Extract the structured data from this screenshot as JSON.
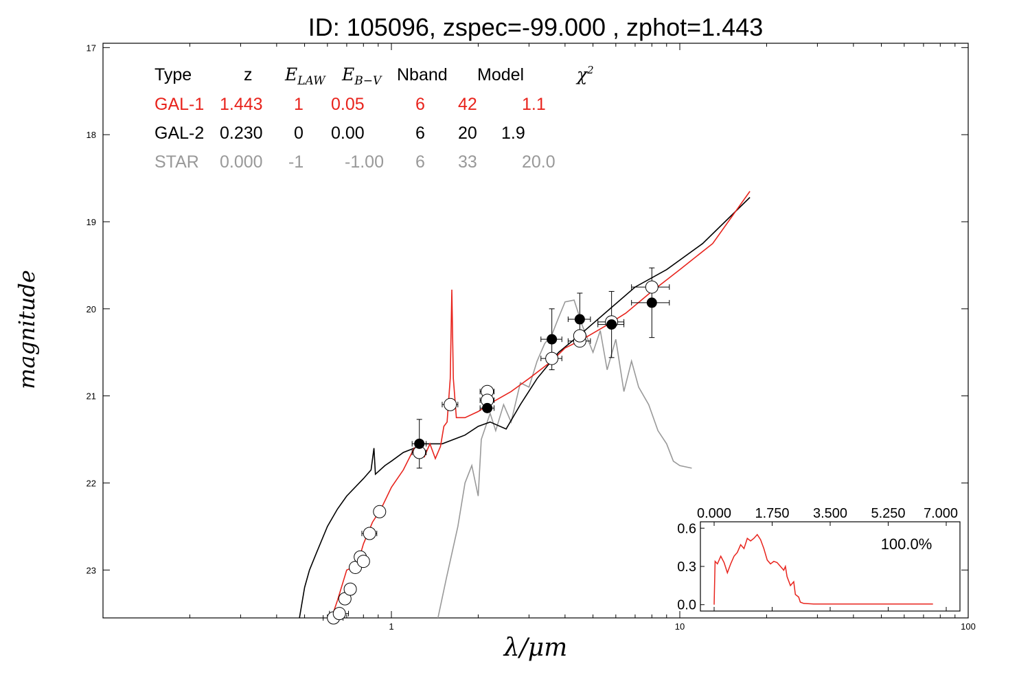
{
  "title": "ID:  105096, zspec=-99.000 , zphot=1.443",
  "colors": {
    "gal1": "#e8231c",
    "gal2": "#000000",
    "star": "#999999",
    "axes": "#000000"
  },
  "table": {
    "headers": [
      "Type",
      "z",
      "E_LAW",
      "E_B-V",
      "Nband",
      "Model",
      "χ²"
    ],
    "rows": [
      {
        "type": "GAL-1",
        "z": "1.443",
        "elaw": "1",
        "ebv": "0.05",
        "nband": "6",
        "model": "42",
        "chi2": "1.1",
        "color": "#e8231c"
      },
      {
        "type": "GAL-2",
        "z": "0.230",
        "elaw": "0",
        "ebv": "0.00",
        "nband": "6",
        "model": "20",
        "chi2": "1.9",
        "color": "#000000"
      },
      {
        "type": "STAR",
        "z": "0.000",
        "elaw": "-1",
        "ebv": "-1.00",
        "nband": "6",
        "model": "33",
        "chi2": "20.0",
        "color": "#999999"
      }
    ]
  },
  "chart_data": [
    {
      "type": "line",
      "xlabel": "λ/μm",
      "ylabel": "magnitude",
      "xscale": "log",
      "xlim": [
        0.1,
        100
      ],
      "ylim": [
        23.55,
        16.95
      ],
      "y_inverted": true,
      "xticks": [
        1,
        10,
        100
      ],
      "xtick_labels": [
        "1",
        "10",
        "100"
      ],
      "yticks": [
        17,
        18,
        19,
        20,
        21,
        22,
        23
      ],
      "ytick_labels": [
        "17",
        "18",
        "19",
        "20",
        "21",
        "22",
        "23"
      ],
      "grid": false,
      "series": [
        {
          "key": "gal1",
          "color": "#e8231c",
          "kind": "line",
          "points": [
            [
              0.62,
              23.55
            ],
            [
              0.65,
              23.35
            ],
            [
              0.7,
              23.0
            ],
            [
              0.76,
              22.95
            ],
            [
              0.8,
              22.7
            ],
            [
              0.86,
              22.45
            ],
            [
              0.92,
              22.3
            ],
            [
              1.0,
              22.05
            ],
            [
              1.1,
              21.85
            ],
            [
              1.2,
              21.6
            ],
            [
              1.3,
              21.7
            ],
            [
              1.36,
              21.55
            ],
            [
              1.42,
              21.72
            ],
            [
              1.48,
              21.58
            ],
            [
              1.52,
              21.35
            ],
            [
              1.56,
              21.3
            ],
            [
              1.6,
              20.8
            ],
            [
              1.62,
              19.78
            ],
            [
              1.64,
              20.8
            ],
            [
              1.68,
              21.25
            ],
            [
              1.8,
              21.25
            ],
            [
              2.0,
              21.18
            ],
            [
              2.3,
              21.05
            ],
            [
              2.6,
              20.95
            ],
            [
              3.0,
              20.8
            ],
            [
              3.6,
              20.6
            ],
            [
              4.0,
              20.45
            ],
            [
              4.6,
              20.35
            ],
            [
              5.5,
              20.2
            ],
            [
              6.5,
              20.05
            ],
            [
              8.0,
              19.8
            ],
            [
              10.0,
              19.55
            ],
            [
              13.0,
              19.25
            ],
            [
              17.5,
              18.65
            ]
          ]
        },
        {
          "key": "gal2",
          "color": "#000000",
          "kind": "line",
          "points": [
            [
              0.48,
              23.55
            ],
            [
              0.5,
              23.2
            ],
            [
              0.52,
              23.0
            ],
            [
              0.55,
              22.8
            ],
            [
              0.6,
              22.5
            ],
            [
              0.65,
              22.3
            ],
            [
              0.7,
              22.15
            ],
            [
              0.8,
              21.95
            ],
            [
              0.85,
              21.85
            ],
            [
              0.87,
              21.6
            ],
            [
              0.88,
              21.9
            ],
            [
              0.95,
              21.8
            ],
            [
              1.0,
              21.75
            ],
            [
              1.1,
              21.65
            ],
            [
              1.2,
              21.6
            ],
            [
              1.3,
              21.55
            ],
            [
              1.5,
              21.55
            ],
            [
              1.8,
              21.45
            ],
            [
              2.0,
              21.35
            ],
            [
              2.2,
              21.3
            ],
            [
              2.5,
              21.38
            ],
            [
              2.8,
              21.1
            ],
            [
              3.2,
              20.8
            ],
            [
              3.8,
              20.5
            ],
            [
              4.5,
              20.3
            ],
            [
              5.5,
              20.05
            ],
            [
              7.0,
              19.75
            ],
            [
              9.0,
              19.55
            ],
            [
              12.0,
              19.25
            ],
            [
              17.5,
              18.72
            ]
          ]
        },
        {
          "key": "star",
          "color": "#999999",
          "kind": "line",
          "points": [
            [
              1.45,
              23.55
            ],
            [
              1.55,
              23.1
            ],
            [
              1.7,
              22.5
            ],
            [
              1.8,
              22.0
            ],
            [
              1.9,
              21.8
            ],
            [
              2.0,
              22.15
            ],
            [
              2.05,
              21.5
            ],
            [
              2.2,
              21.2
            ],
            [
              2.3,
              21.4
            ],
            [
              2.45,
              21.1
            ],
            [
              2.6,
              21.3
            ],
            [
              2.8,
              20.85
            ],
            [
              3.0,
              20.9
            ],
            [
              3.2,
              20.6
            ],
            [
              3.4,
              20.4
            ],
            [
              3.6,
              20.3
            ],
            [
              3.8,
              20.1
            ],
            [
              4.0,
              19.92
            ],
            [
              4.3,
              19.9
            ],
            [
              4.6,
              20.2
            ],
            [
              5.0,
              20.5
            ],
            [
              5.3,
              20.25
            ],
            [
              5.6,
              20.7
            ],
            [
              6.0,
              20.35
            ],
            [
              6.4,
              20.95
            ],
            [
              6.8,
              20.6
            ],
            [
              7.2,
              20.9
            ],
            [
              7.8,
              21.1
            ],
            [
              8.4,
              21.4
            ],
            [
              9.0,
              21.55
            ],
            [
              9.5,
              21.75
            ],
            [
              10.0,
              21.8
            ],
            [
              11.0,
              21.83
            ]
          ]
        }
      ],
      "data_points": [
        {
          "x": 1.25,
          "y": 21.55,
          "xerr": 0.07,
          "yerr": 0.28,
          "fill": "black"
        },
        {
          "x": 2.15,
          "y": 21.14,
          "xerr": 0.12,
          "yerr": 0.0,
          "fill": "black"
        },
        {
          "x": 3.6,
          "y": 20.35,
          "xerr": 0.3,
          "yerr": 0.35,
          "fill": "black"
        },
        {
          "x": 4.5,
          "y": 20.12,
          "xerr": 0.4,
          "yerr": 0.3,
          "fill": "black"
        },
        {
          "x": 5.8,
          "y": 20.18,
          "xerr": 0.6,
          "yerr": 0.38,
          "fill": "black"
        },
        {
          "x": 8.0,
          "y": 19.93,
          "xerr": 1.2,
          "yerr": 0.4,
          "fill": "black"
        },
        {
          "x": 0.63,
          "y": 23.55,
          "xerr": 0.05,
          "yerr": 0.0,
          "fill": "white"
        },
        {
          "x": 0.66,
          "y": 23.5,
          "xerr": 0.05,
          "yerr": 0.0,
          "fill": "white"
        },
        {
          "x": 0.69,
          "y": 23.33,
          "xerr": 0.0,
          "yerr": 0.0,
          "fill": "white"
        },
        {
          "x": 0.72,
          "y": 23.22,
          "xerr": 0.0,
          "yerr": 0.0,
          "fill": "white"
        },
        {
          "x": 0.75,
          "y": 22.97,
          "xerr": 0.0,
          "yerr": 0.0,
          "fill": "white"
        },
        {
          "x": 0.78,
          "y": 22.85,
          "xerr": 0.0,
          "yerr": 0.0,
          "fill": "white"
        },
        {
          "x": 0.8,
          "y": 22.9,
          "xerr": 0.0,
          "yerr": 0.0,
          "fill": "white"
        },
        {
          "x": 0.84,
          "y": 22.58,
          "xerr": 0.05,
          "yerr": 0.0,
          "fill": "white"
        },
        {
          "x": 0.91,
          "y": 22.33,
          "xerr": 0.0,
          "yerr": 0.0,
          "fill": "white"
        },
        {
          "x": 1.25,
          "y": 21.65,
          "xerr": 0.07,
          "yerr": 0.0,
          "fill": "white"
        },
        {
          "x": 1.6,
          "y": 21.1,
          "xerr": 0.1,
          "yerr": 0.0,
          "fill": "white"
        },
        {
          "x": 2.15,
          "y": 20.95,
          "xerr": 0.12,
          "yerr": 0.0,
          "fill": "white"
        },
        {
          "x": 2.15,
          "y": 21.05,
          "xerr": 0.12,
          "yerr": 0.0,
          "fill": "white"
        },
        {
          "x": 3.6,
          "y": 20.57,
          "xerr": 0.3,
          "yerr": 0.0,
          "fill": "white"
        },
        {
          "x": 4.5,
          "y": 20.37,
          "xerr": 0.4,
          "yerr": 0.0,
          "fill": "white"
        },
        {
          "x": 4.5,
          "y": 20.31,
          "xerr": 0.0,
          "yerr": 0.0,
          "fill": "white"
        },
        {
          "x": 5.8,
          "y": 20.15,
          "xerr": 0.6,
          "yerr": 0.0,
          "fill": "white"
        },
        {
          "x": 8.0,
          "y": 19.75,
          "xerr": 1.2,
          "yerr": 0.0,
          "fill": "white"
        }
      ]
    },
    {
      "type": "line",
      "title": "",
      "xlim": [
        0.0,
        7.0
      ],
      "ylim": [
        -0.05,
        0.65
      ],
      "xticks": [
        0.0,
        1.75,
        3.5,
        5.25,
        7.0
      ],
      "xtick_labels": [
        "0.000",
        "1.750",
        "3.500",
        "5.250",
        "7.000"
      ],
      "yticks": [
        0.0,
        0.3,
        0.6
      ],
      "ytick_labels": [
        "0.0",
        "0.3",
        "0.6"
      ],
      "annotation": "100.0%",
      "color": "#e8231c",
      "points": [
        [
          0.0,
          0.0
        ],
        [
          0.03,
          0.34
        ],
        [
          0.1,
          0.32
        ],
        [
          0.2,
          0.38
        ],
        [
          0.3,
          0.33
        ],
        [
          0.4,
          0.25
        ],
        [
          0.5,
          0.32
        ],
        [
          0.6,
          0.38
        ],
        [
          0.7,
          0.41
        ],
        [
          0.8,
          0.47
        ],
        [
          0.9,
          0.44
        ],
        [
          1.0,
          0.52
        ],
        [
          1.1,
          0.5
        ],
        [
          1.2,
          0.52
        ],
        [
          1.3,
          0.55
        ],
        [
          1.4,
          0.51
        ],
        [
          1.5,
          0.44
        ],
        [
          1.6,
          0.35
        ],
        [
          1.7,
          0.32
        ],
        [
          1.8,
          0.34
        ],
        [
          1.9,
          0.33
        ],
        [
          2.0,
          0.3
        ],
        [
          2.1,
          0.27
        ],
        [
          2.15,
          0.3
        ],
        [
          2.2,
          0.22
        ],
        [
          2.3,
          0.15
        ],
        [
          2.4,
          0.18
        ],
        [
          2.45,
          0.08
        ],
        [
          2.55,
          0.06
        ],
        [
          2.6,
          0.02
        ],
        [
          2.7,
          0.01
        ],
        [
          3.0,
          0.005
        ],
        [
          4.0,
          0.005
        ],
        [
          5.0,
          0.005
        ],
        [
          6.0,
          0.005
        ],
        [
          6.6,
          0.005
        ]
      ]
    }
  ]
}
